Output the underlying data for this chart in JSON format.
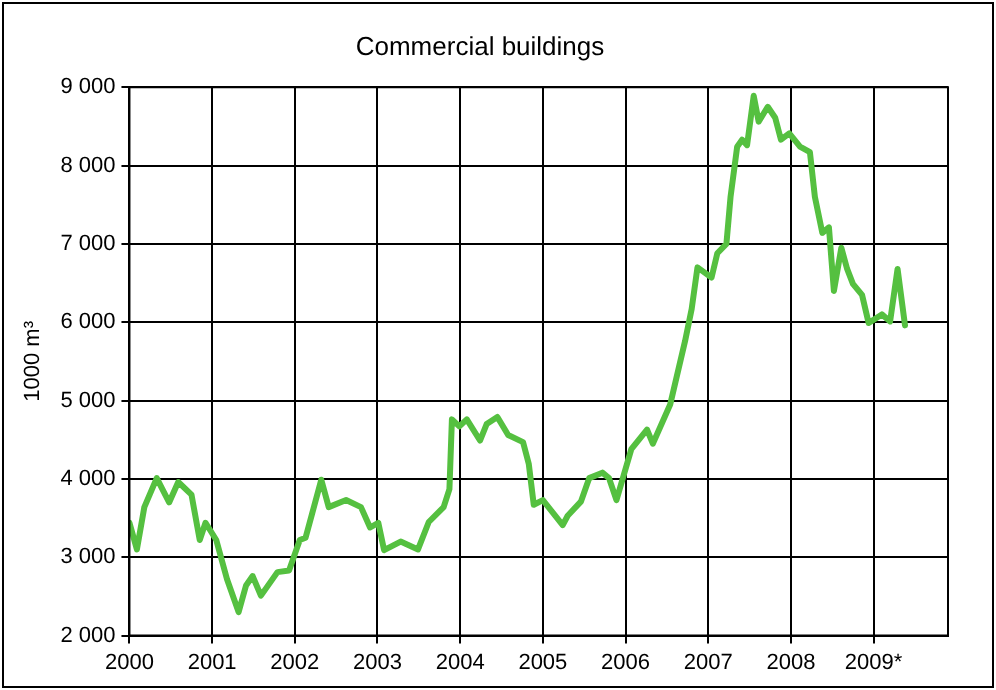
{
  "chart_data": {
    "type": "line",
    "title": "Commercial buildings",
    "ylabel": "1000 m³",
    "xlim": [
      2000,
      2009.9
    ],
    "xticks": [
      2000,
      2001,
      2002,
      2003,
      2004,
      2005,
      2006,
      2007,
      2008,
      {
        "value": 2009,
        "label": "2009*"
      }
    ],
    "ylim": [
      2000,
      9000
    ],
    "yticks": [
      {
        "value": 2000,
        "label": "2 000"
      },
      {
        "value": 3000,
        "label": "3 000"
      },
      {
        "value": 4000,
        "label": "4 000"
      },
      {
        "value": 5000,
        "label": "5 000"
      },
      {
        "value": 6000,
        "label": "6 000"
      },
      {
        "value": 7000,
        "label": "7 000"
      },
      {
        "value": 8000,
        "label": "8 000"
      },
      {
        "value": 9000,
        "label": "9 000"
      }
    ],
    "grid": true,
    "legend": false,
    "marker": "none",
    "line_style": "solid",
    "series": [
      {
        "color": "#55c040",
        "x": [
          2000.0,
          2000.09,
          2000.18,
          2000.33,
          2000.48,
          2000.59,
          2000.75,
          2000.85,
          2000.92,
          2001.05,
          2001.18,
          2001.32,
          2001.41,
          2001.49,
          2001.59,
          2001.79,
          2001.93,
          2002.06,
          2002.13,
          2002.21,
          2002.32,
          2002.41,
          2002.62,
          2002.8,
          2002.91,
          2003.01,
          2003.08,
          2003.28,
          2003.49,
          2003.62,
          2003.8,
          2003.87,
          2003.9,
          2003.99,
          2004.08,
          2004.24,
          2004.32,
          2004.45,
          2004.58,
          2004.76,
          2004.83,
          2004.89,
          2005.0,
          2005.24,
          2005.3,
          2005.46,
          2005.56,
          2005.72,
          2005.8,
          2005.89,
          2006.07,
          2006.26,
          2006.33,
          2006.54,
          2006.72,
          2006.8,
          2006.87,
          2007.04,
          2007.11,
          2007.22,
          2007.27,
          2007.35,
          2007.41,
          2007.47,
          2007.55,
          2007.61,
          2007.72,
          2007.81,
          2007.88,
          2007.98,
          2008.11,
          2008.23,
          2008.29,
          2008.38,
          2008.46,
          2008.52,
          2008.61,
          2008.68,
          2008.75,
          2008.86,
          2008.94,
          2009.1,
          2009.2,
          2009.29,
          2009.38
        ],
        "values": [
          3440,
          3100,
          3640,
          4010,
          3700,
          3960,
          3800,
          3220,
          3440,
          3220,
          2720,
          2300,
          2640,
          2760,
          2510,
          2810,
          2830,
          3220,
          3250,
          3560,
          3990,
          3640,
          3730,
          3640,
          3380,
          3440,
          3090,
          3200,
          3100,
          3450,
          3640,
          3870,
          4760,
          4670,
          4760,
          4490,
          4700,
          4790,
          4560,
          4470,
          4190,
          3670,
          3730,
          3410,
          3530,
          3710,
          4010,
          4080,
          4010,
          3730,
          4380,
          4630,
          4450,
          4950,
          5760,
          6170,
          6700,
          6570,
          6880,
          7000,
          7600,
          8240,
          8330,
          8260,
          8890,
          8560,
          8750,
          8610,
          8330,
          8410,
          8240,
          8170,
          7600,
          7140,
          7210,
          6400,
          6950,
          6680,
          6490,
          6350,
          5990,
          6100,
          6010,
          6680,
          5960
        ]
      }
    ]
  }
}
